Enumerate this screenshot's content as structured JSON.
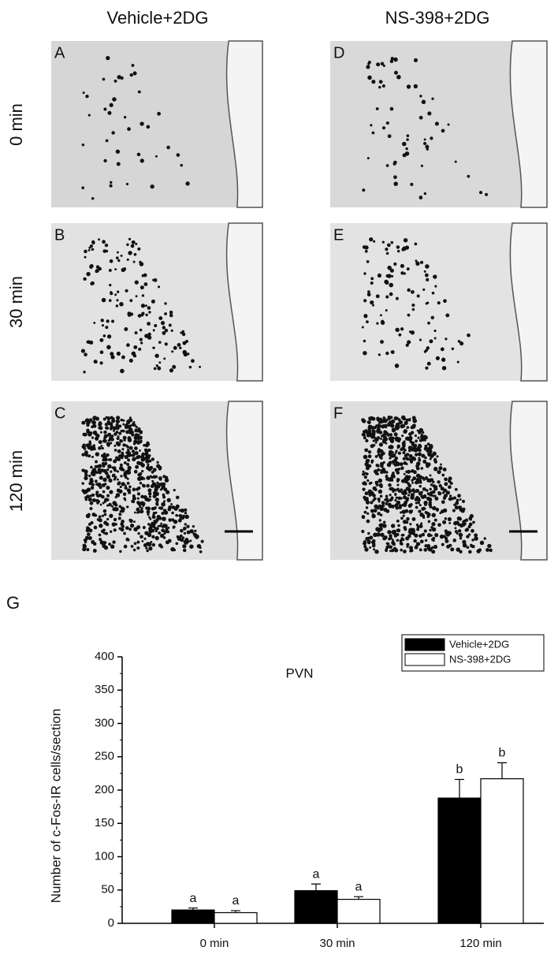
{
  "figure": {
    "column_labels": [
      "Vehicle+2DG",
      "NS-398+2DG"
    ],
    "row_labels": [
      "0 min",
      "30 min",
      "120 min"
    ],
    "panel_letters": [
      "A",
      "B",
      "C",
      "D",
      "E",
      "F"
    ],
    "chart_letter": "G"
  },
  "chart_data": {
    "type": "bar",
    "title": "PVN",
    "y_label": "Number of c-Fos-IR cells/section",
    "categories": [
      "0 min",
      "30 min",
      "120 min"
    ],
    "series": [
      {
        "name": "Vehicle+2DG",
        "color": "#000000",
        "values": [
          20,
          49,
          188
        ],
        "errors": [
          3,
          10,
          28
        ],
        "significance": [
          "a",
          "a",
          "b"
        ]
      },
      {
        "name": "NS-398+2DG",
        "color": "#ffffff",
        "values": [
          16,
          36,
          217
        ],
        "errors": [
          3,
          4,
          24
        ],
        "significance": [
          "a",
          "a",
          "b"
        ]
      }
    ],
    "ylim": [
      0,
      400
    ],
    "yticks": [
      0,
      50,
      100,
      150,
      200,
      250,
      300,
      350,
      400
    ],
    "legend": "upper right"
  }
}
